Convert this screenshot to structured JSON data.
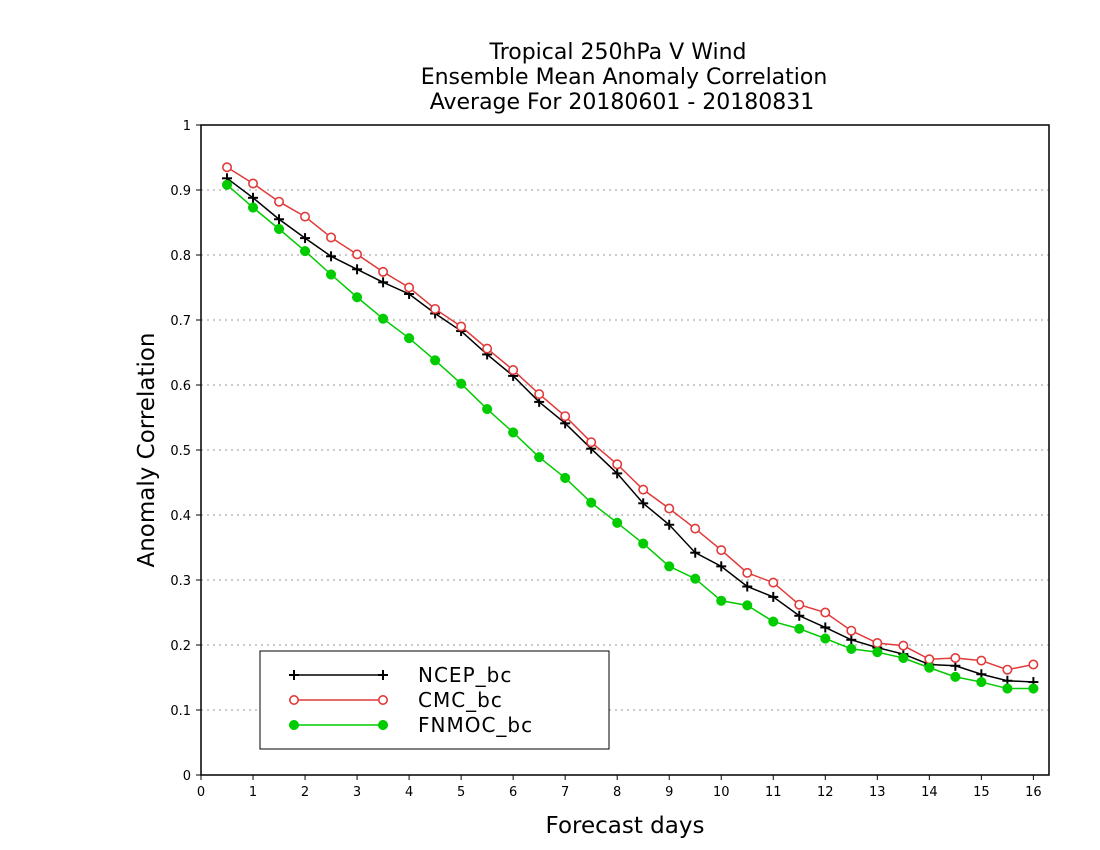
{
  "chart_data": {
    "type": "line",
    "title": [
      "Tropical 250hPa V Wind",
      "Ensemble Mean Anomaly Correlation",
      "Average For 20180601 - 20180831"
    ],
    "xlabel": "Forecast days",
    "ylabel": "Anomaly Correlation",
    "xlim": [
      0,
      16.3
    ],
    "ylim": [
      0,
      1
    ],
    "xticks": [
      "0",
      "1",
      "2",
      "3",
      "4",
      "5",
      "6",
      "7",
      "8",
      "9",
      "10",
      "11",
      "12",
      "13",
      "14",
      "15",
      "16"
    ],
    "yticks": [
      "0",
      "0.1",
      "0.2",
      "0.3",
      "0.4",
      "0.5",
      "0.6",
      "0.7",
      "0.8",
      "0.9",
      "1"
    ],
    "grid": "horizontal dotted",
    "legend_position": "bottom-left",
    "x": [
      0.5,
      1,
      1.5,
      2,
      2.5,
      3,
      3.5,
      4,
      4.5,
      5,
      5.5,
      6,
      6.5,
      7,
      7.5,
      8,
      8.5,
      9,
      9.5,
      10,
      10.5,
      11,
      11.5,
      12,
      12.5,
      13,
      13.5,
      14,
      14.5,
      15,
      15.5,
      16
    ],
    "series": [
      {
        "name": "NCEP_bc",
        "color": "#000000",
        "marker": "plus",
        "values": [
          0.918,
          0.888,
          0.855,
          0.826,
          0.798,
          0.778,
          0.758,
          0.74,
          0.71,
          0.683,
          0.647,
          0.614,
          0.574,
          0.541,
          0.502,
          0.464,
          0.418,
          0.385,
          0.342,
          0.321,
          0.29,
          0.274,
          0.245,
          0.227,
          0.208,
          0.196,
          0.186,
          0.17,
          0.168,
          0.155,
          0.145,
          0.143
        ]
      },
      {
        "name": "CMC_bc",
        "color": "#e03a3a",
        "marker": "open-circle",
        "values": [
          0.935,
          0.91,
          0.882,
          0.859,
          0.827,
          0.801,
          0.774,
          0.75,
          0.717,
          0.69,
          0.656,
          0.623,
          0.586,
          0.552,
          0.512,
          0.478,
          0.439,
          0.41,
          0.379,
          0.346,
          0.311,
          0.296,
          0.262,
          0.25,
          0.222,
          0.203,
          0.199,
          0.178,
          0.18,
          0.176,
          0.162,
          0.17
        ]
      },
      {
        "name": "FNMOC_bc",
        "color": "#00cc00",
        "marker": "filled-circle",
        "values": [
          0.908,
          0.873,
          0.84,
          0.806,
          0.77,
          0.735,
          0.702,
          0.672,
          0.638,
          0.602,
          0.563,
          0.527,
          0.489,
          0.457,
          0.419,
          0.388,
          0.356,
          0.321,
          0.302,
          0.268,
          0.261,
          0.236,
          0.225,
          0.21,
          0.194,
          0.189,
          0.18,
          0.165,
          0.151,
          0.143,
          0.133,
          0.133
        ]
      }
    ]
  }
}
